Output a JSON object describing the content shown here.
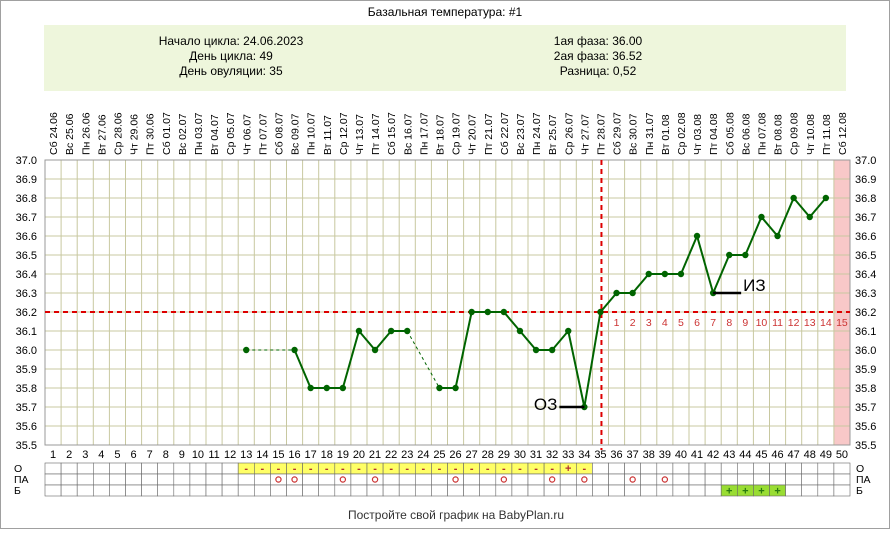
{
  "header": {
    "title": "Базальная температура: #1",
    "left_lines": [
      "Начало цикла: 24.06.2023",
      "День цикла: 49",
      "День овуляции: 35"
    ],
    "right_lines": [
      "1ая фаза: 36.00",
      "2ая фаза: 36.52",
      "Разница: 0,52"
    ]
  },
  "footer": "Постройте свой график на BabyPlan.ru",
  "row_labels": [
    "О",
    "ПА",
    "Б"
  ],
  "colors": {
    "line": "#006400",
    "grid": "#c8c8a0",
    "ovulation": "#dd0000",
    "box_bg": "#eef6dc",
    "shade": "#f8c8c8",
    "o_marks": "#ffff66",
    "b_marks": "#99dd33"
  },
  "chart_data": {
    "type": "line",
    "ylim": [
      35.5,
      37.0
    ],
    "yticks": [
      "37.0",
      "36.9",
      "36.8",
      "36.7",
      "36.6",
      "36.5",
      "36.4",
      "36.3",
      "36.2",
      "36.1",
      "36.0",
      "35.9",
      "35.8",
      "35.7",
      "35.6",
      "35.5"
    ],
    "days": [
      1,
      2,
      3,
      4,
      5,
      6,
      7,
      8,
      9,
      10,
      11,
      12,
      13,
      14,
      15,
      16,
      17,
      18,
      19,
      20,
      21,
      22,
      23,
      24,
      25,
      26,
      27,
      28,
      29,
      30,
      31,
      32,
      33,
      34,
      35,
      36,
      37,
      38,
      39,
      40,
      41,
      42,
      43,
      44,
      45,
      46,
      47,
      48,
      49,
      50
    ],
    "dates": [
      "Сб 24.06",
      "Вс 25.06",
      "Пн 26.06",
      "Вт 27.06",
      "Ср 28.06",
      "Чт 29.06",
      "Пт 30.06",
      "Сб 01.07",
      "Вс 02.07",
      "Пн 03.07",
      "Вт 04.07",
      "Ср 05.07",
      "Чт 06.07",
      "Пт 07.07",
      "Сб 08.07",
      "Вс 09.07",
      "Пн 10.07",
      "Вт 11.07",
      "Ср 12.07",
      "Чт 13.07",
      "Пт 14.07",
      "Сб 15.07",
      "Вс 16.07",
      "Пн 17.07",
      "Вт 18.07",
      "Ср 19.07",
      "Чт 20.07",
      "Пт 21.07",
      "Сб 22.07",
      "Вс 23.07",
      "Пн 24.07",
      "Вт 25.07",
      "Ср 26.07",
      "Чт 27.07",
      "Пт 28.07",
      "Сб 29.07",
      "Вс 30.07",
      "Пн 31.07",
      "Вт 01.08",
      "Ср 02.08",
      "Чт 03.08",
      "Пт 04.08",
      "Сб 05.08",
      "Вс 06.08",
      "Пн 07.08",
      "Вт 08.08",
      "Ср 09.08",
      "Чт 10.08",
      "Пт 11.08",
      "Сб 12.08"
    ],
    "series": [
      {
        "values": [
          null,
          null,
          null,
          null,
          null,
          null,
          null,
          null,
          null,
          null,
          null,
          null,
          36.0,
          null,
          null,
          36.0,
          35.8,
          35.8,
          35.8,
          36.1,
          36.0,
          36.1,
          36.1,
          null,
          35.8,
          35.8,
          36.2,
          36.2,
          36.2,
          36.1,
          36.0,
          36.0,
          36.1,
          35.7,
          36.2,
          36.3,
          36.3,
          36.4,
          36.4,
          36.4,
          36.6,
          36.3,
          36.5,
          36.5,
          36.7,
          36.6,
          36.8,
          36.7,
          36.8,
          null
        ]
      }
    ],
    "coverline": 36.2,
    "ovulation_day": 35,
    "post_ovulation_labels": [
      "1",
      "2",
      "3",
      "4",
      "5",
      "6",
      "7",
      "8",
      "9",
      "10",
      "11",
      "12",
      "13",
      "14",
      "15"
    ],
    "annotations": [
      {
        "text": "ОЗ",
        "day": 34,
        "value": 35.7
      },
      {
        "text": "ИЗ",
        "day": 42,
        "value": 36.3
      }
    ],
    "o_row": {
      "13": "-",
      "14": "-",
      "15": "-",
      "16": "-",
      "17": "-",
      "18": "-",
      "19": "-",
      "20": "-",
      "21": "-",
      "22": "-",
      "23": "-",
      "24": "-",
      "25": "-",
      "26": "-",
      "27": "-",
      "28": "-",
      "29": "-",
      "30": "-",
      "31": "-",
      "32": "-",
      "33": "+",
      "34": "-"
    },
    "pa_row": [
      15,
      16,
      19,
      21,
      26,
      29,
      32,
      34,
      37,
      39
    ],
    "b_row": [
      43,
      44,
      45,
      46
    ]
  }
}
